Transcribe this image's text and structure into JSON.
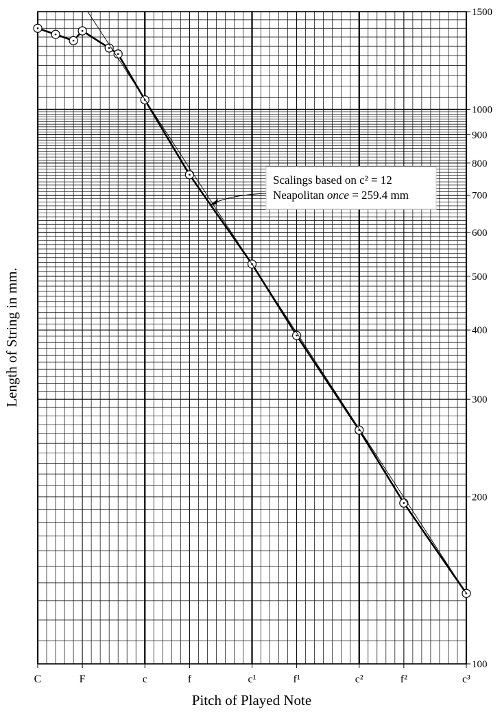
{
  "chart_data": {
    "type": "line",
    "ylabel": "Length of String in mm.",
    "xlabel": "Pitch of Played Note",
    "annotation": {
      "line1": "Scalings based on c² = 12",
      "line2": [
        "Neapolitan ",
        "once",
        " = 259.4 mm"
      ]
    },
    "log_y": true,
    "grid": true,
    "xlim": [
      0,
      48
    ],
    "ylim": [
      100,
      1500
    ],
    "xticks": [
      {
        "value": 0,
        "label": "C"
      },
      {
        "value": 5,
        "label": "F"
      },
      {
        "value": 12,
        "label": "c"
      },
      {
        "value": 17,
        "label": "f"
      },
      {
        "value": 24,
        "label": "c¹"
      },
      {
        "value": 29,
        "label": "f¹"
      },
      {
        "value": 36,
        "label": "c²"
      },
      {
        "value": 41,
        "label": "f²"
      },
      {
        "value": 48,
        "label": "c³"
      }
    ],
    "yticks": [
      100,
      200,
      300,
      400,
      500,
      600,
      700,
      800,
      900,
      1000,
      1500
    ],
    "series": [
      {
        "color": "#000000",
        "markers": true,
        "x": [
          0,
          2,
          4,
          5,
          8,
          9,
          12,
          17,
          24,
          29,
          36,
          41,
          48
        ],
        "values": [
          1400,
          1365,
          1330,
          1385,
          1290,
          1258,
          1040,
          762,
          526,
          391,
          264,
          195,
          134
        ]
      },
      {
        "color": "#000000",
        "markers": false,
        "x": [
          5.6,
          48
        ],
        "values": [
          1500,
          134
        ]
      }
    ]
  }
}
